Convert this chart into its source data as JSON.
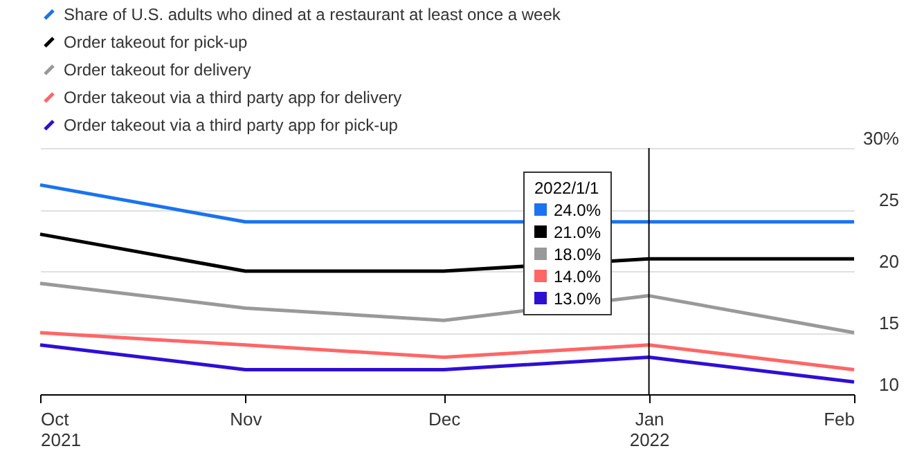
{
  "chart_data": {
    "type": "line",
    "x": [
      "2021-10",
      "2021-11",
      "2021-12",
      "2022-01",
      "2022-02"
    ],
    "series": [
      {
        "name": "Share of U.S. adults who dined at a restaurant at least once a week",
        "color": "#1a73f0",
        "values": [
          27,
          24,
          24,
          24,
          24
        ]
      },
      {
        "name": "Order takeout for pick-up",
        "color": "#000000",
        "values": [
          23,
          20,
          20,
          21,
          21
        ]
      },
      {
        "name": "Order takeout for delivery",
        "color": "#999999",
        "values": [
          19,
          17,
          16,
          18,
          15
        ]
      },
      {
        "name": "Order takeout via a third party app for delivery",
        "color": "#ff6666",
        "values": [
          15,
          14,
          13,
          14,
          12
        ]
      },
      {
        "name": "Order takeout via a third party app for pick-up",
        "color": "#2e0fd6",
        "values": [
          14,
          12,
          12,
          13,
          11
        ]
      }
    ],
    "xlim": [
      "2021-10",
      "2022-02"
    ],
    "xticks": [
      {
        "value": "2021-10",
        "label": "Oct 2021"
      },
      {
        "value": "2021-11",
        "label": "Nov"
      },
      {
        "value": "2021-12",
        "label": "Dec"
      },
      {
        "value": "2022-01",
        "label": "Jan 2022"
      },
      {
        "value": "2022-02",
        "label": "Feb"
      }
    ],
    "ylim": [
      10,
      30
    ],
    "yticks": [
      10,
      15,
      20,
      25,
      {
        "value": 30,
        "label": "30%"
      }
    ],
    "grid": "y",
    "legend": "top left",
    "line_style": "solid",
    "ref_lines": [
      {
        "axis": "x",
        "value": "2022-01",
        "color": "#000000"
      }
    ],
    "annotations": [
      "2022/1/1",
      "24.0%",
      "21.0%",
      "18.0%",
      "14.0%",
      "13.0%"
    ]
  }
}
